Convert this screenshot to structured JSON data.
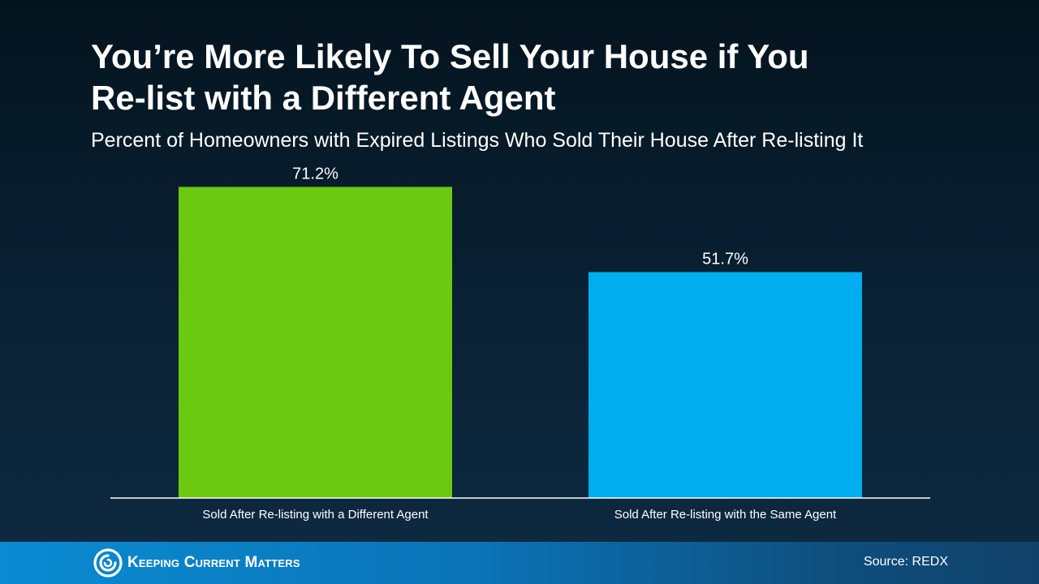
{
  "chart_data": {
    "type": "bar",
    "title": "You’re More Likely To Sell Your House if You Re-list with a Different Agent",
    "title_lines": [
      "You’re More Likely To Sell Your House if You",
      "Re-list with a Different Agent"
    ],
    "subtitle": "Percent of Homeowners with Expired Listings Who Sold Their House After Re-listing It",
    "categories": [
      "Sold After Re-listing with a Different Agent",
      "Sold After Re-listing with the Same Agent"
    ],
    "values": [
      71.2,
      51.7
    ],
    "value_labels": [
      "71.2%",
      "51.7%"
    ],
    "colors": [
      "#6cc911",
      "#00aeef"
    ],
    "xlabel": "",
    "ylabel": "",
    "ylim": [
      0,
      80
    ],
    "grid": false,
    "legend": "none"
  },
  "footer": {
    "logo_text": "Keeping Current Matters",
    "source": "Source: REDX"
  },
  "colors": {
    "axis": "#ffffff",
    "text": "#ffffff"
  }
}
